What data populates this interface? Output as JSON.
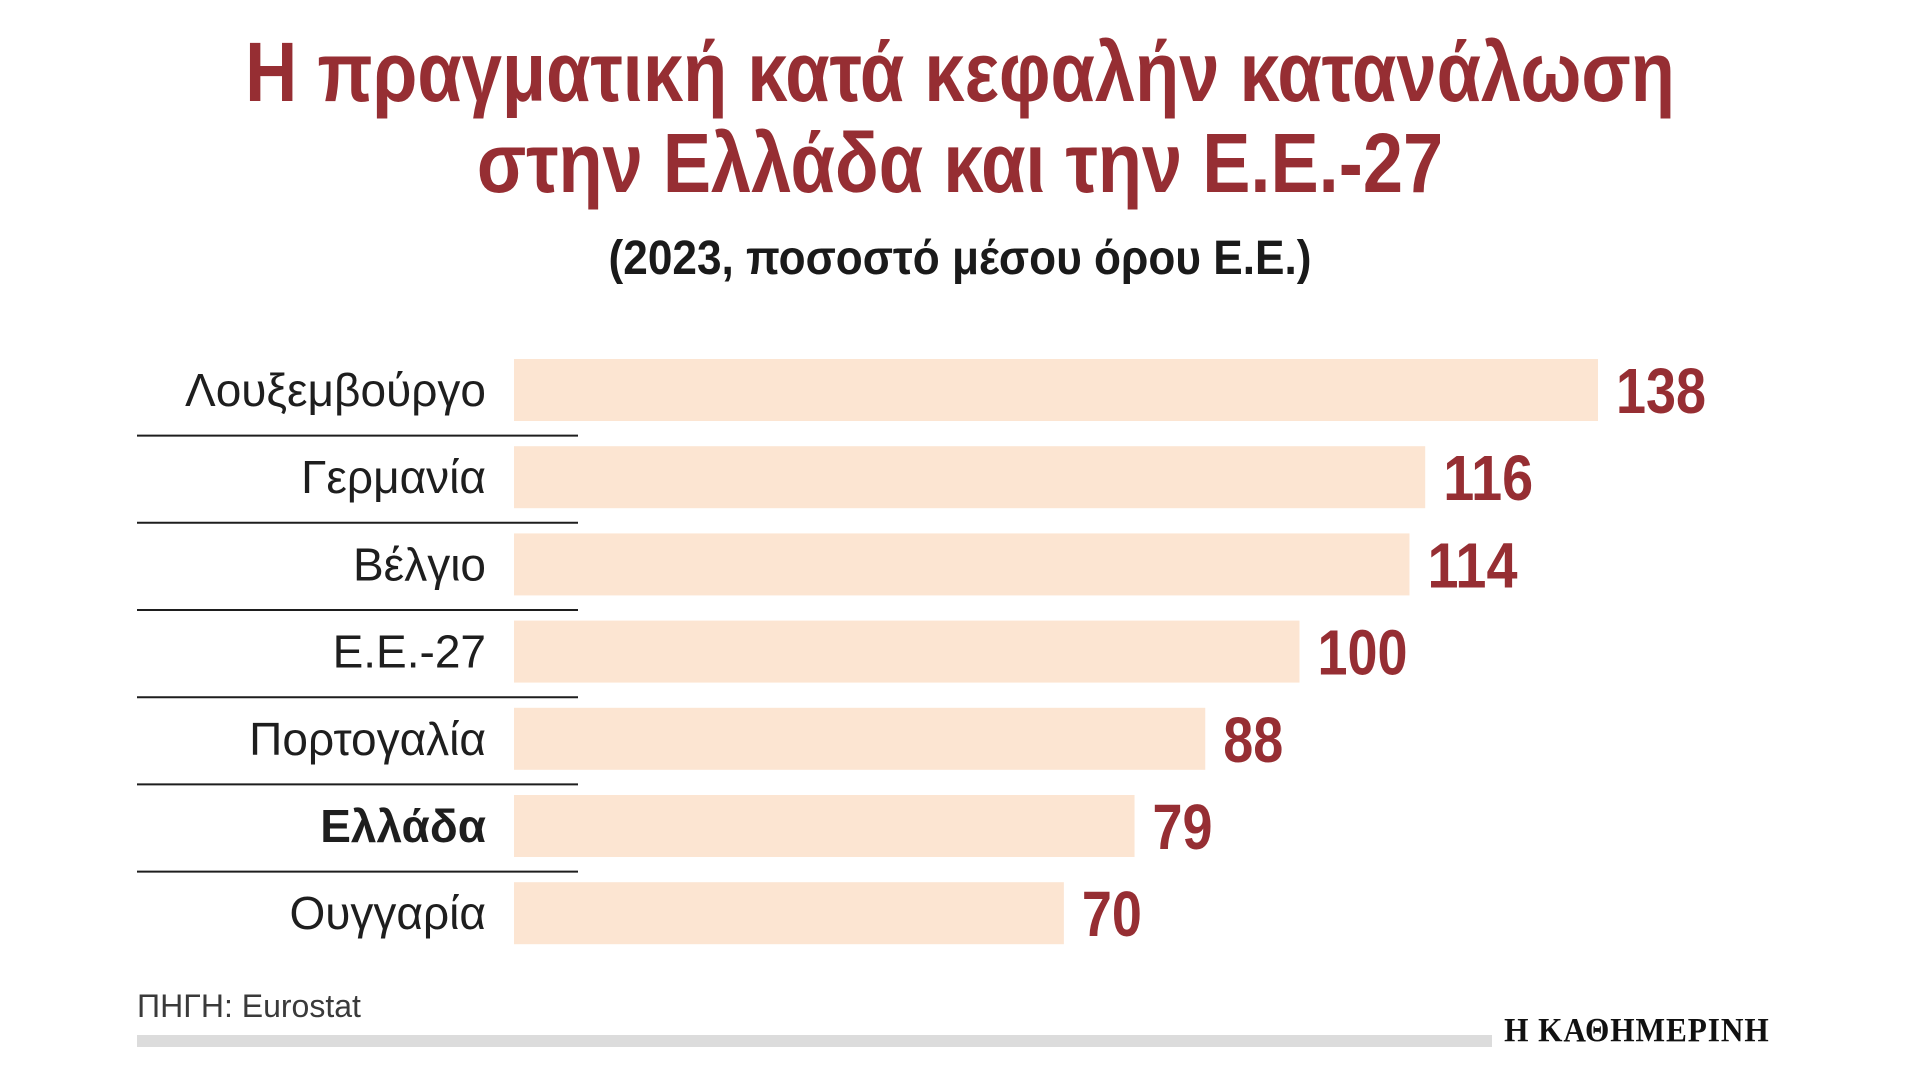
{
  "header": {
    "title_line1": "Η πραγματική κατά κεφαλήν κατανάλωση",
    "title_line2": "στην Ελλάδα και την Ε.Ε.-27",
    "subtitle": "(2023, ποσοστό μέσου όρου Ε.Ε.)"
  },
  "chart_data": {
    "type": "bar",
    "orientation": "horizontal",
    "categories": [
      "Λουξεμβούργο",
      "Γερμανία",
      "Βέλγιο",
      "Ε.Ε.-27",
      "Πορτογαλία",
      "Ελλάδα",
      "Ουγγαρία"
    ],
    "values": [
      138,
      116,
      114,
      100,
      88,
      79,
      70
    ],
    "highlight_category": "Ελλάδα",
    "title": "Η πραγματική κατά κεφαλήν κατανάλωση στην Ελλάδα και την Ε.Ε.-27",
    "subtitle": "(2023, ποσοστό μέσου όρου Ε.Ε.)",
    "xlim": [
      0,
      138
    ],
    "grid": false,
    "legend": "none",
    "colors": {
      "bar": "#fce5d2",
      "value_text": "#962e33",
      "title": "#962e33"
    }
  },
  "footer": {
    "source": "ΠΗΓΗ: Eurostat",
    "brand": "Η ΚΑΘΗΜΕΡΙΝΗ"
  }
}
